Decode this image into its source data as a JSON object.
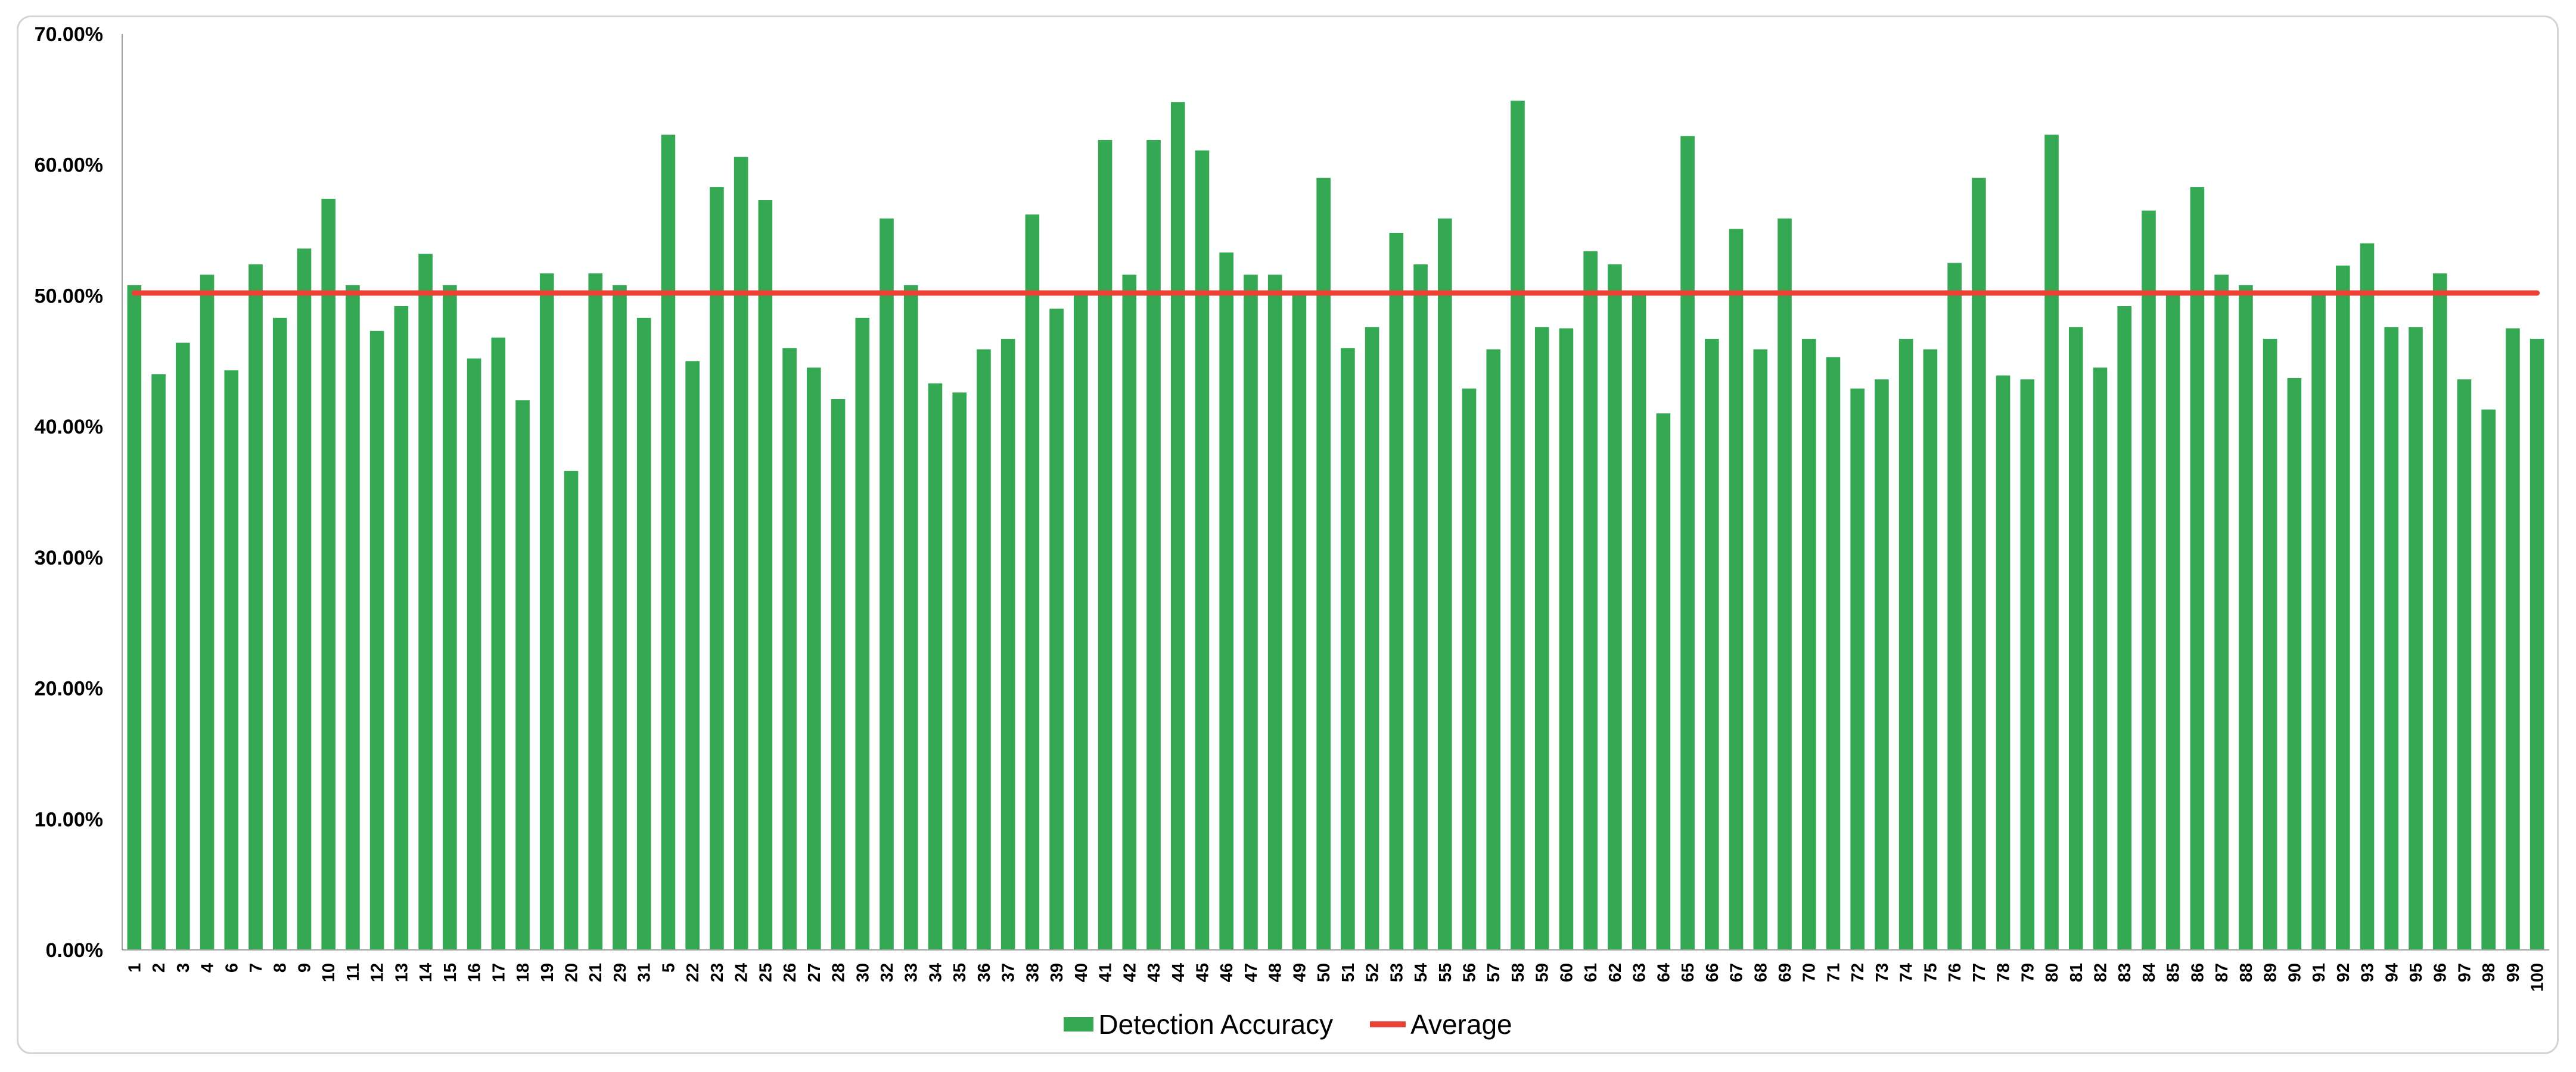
{
  "chart_data": {
    "type": "bar",
    "categories": [
      "1",
      "2",
      "3",
      "4",
      "6",
      "7",
      "8",
      "9",
      "10",
      "11",
      "12",
      "13",
      "14",
      "15",
      "16",
      "17",
      "18",
      "19",
      "20",
      "21",
      "29",
      "31",
      "5",
      "22",
      "23",
      "24",
      "25",
      "26",
      "27",
      "28",
      "30",
      "32",
      "33",
      "34",
      "35",
      "36",
      "37",
      "38",
      "39",
      "40",
      "41",
      "42",
      "43",
      "44",
      "45",
      "46",
      "47",
      "48",
      "49",
      "50",
      "51",
      "52",
      "53",
      "54",
      "55",
      "56",
      "57",
      "58",
      "59",
      "60",
      "61",
      "62",
      "63",
      "64",
      "65",
      "66",
      "67",
      "68",
      "69",
      "70",
      "71",
      "72",
      "73",
      "74",
      "75",
      "76",
      "77",
      "78",
      "79",
      "80",
      "81",
      "82",
      "83",
      "84",
      "85",
      "86",
      "87",
      "88",
      "89",
      "90",
      "91",
      "92",
      "93",
      "94",
      "95",
      "96",
      "97",
      "98",
      "99",
      "100"
    ],
    "series": [
      {
        "name": "Detection Accuracy",
        "type": "bar",
        "color": "#34a853",
        "values": [
          0.508,
          0.44,
          0.464,
          0.516,
          0.443,
          0.524,
          0.483,
          0.536,
          0.574,
          0.508,
          0.473,
          0.492,
          0.532,
          0.508,
          0.452,
          0.468,
          0.42,
          0.517,
          0.366,
          0.517,
          0.508,
          0.483,
          0.623,
          0.45,
          0.583,
          0.606,
          0.573,
          0.46,
          0.445,
          0.421,
          0.483,
          0.559,
          0.508,
          0.433,
          0.426,
          0.459,
          0.467,
          0.562,
          0.49,
          0.5,
          0.619,
          0.516,
          0.619,
          0.648,
          0.611,
          0.533,
          0.516,
          0.516,
          0.5,
          0.59,
          0.46,
          0.476,
          0.548,
          0.524,
          0.559,
          0.429,
          0.459,
          0.649,
          0.476,
          0.475,
          0.534,
          0.524,
          0.5,
          0.41,
          0.622,
          0.467,
          0.551,
          0.459,
          0.559,
          0.467,
          0.453,
          0.429,
          0.436,
          0.467,
          0.459,
          0.525,
          0.59,
          0.439,
          0.436,
          0.623,
          0.476,
          0.445,
          0.492,
          0.565,
          0.5,
          0.583,
          0.516,
          0.508,
          0.467,
          0.437,
          0.5,
          0.523,
          0.54,
          0.476,
          0.476,
          0.517,
          0.436,
          0.413,
          0.475,
          0.467
        ]
      },
      {
        "name": "Average",
        "type": "line",
        "color": "#ea4335",
        "value": 0.502
      }
    ],
    "ylim": [
      0,
      0.7
    ],
    "yticks": [
      "0.00%",
      "10.00%",
      "20.00%",
      "30.00%",
      "40.00%",
      "50.00%",
      "60.00%",
      "70.00%"
    ],
    "xlabel": "",
    "ylabel": "",
    "title": "",
    "grid": false,
    "legend_position": "bottom"
  },
  "legend": {
    "items": [
      {
        "label": "Detection Accuracy",
        "kind": "bar",
        "color": "#34a853"
      },
      {
        "label": "Average",
        "kind": "line",
        "color": "#ea4335"
      }
    ]
  }
}
